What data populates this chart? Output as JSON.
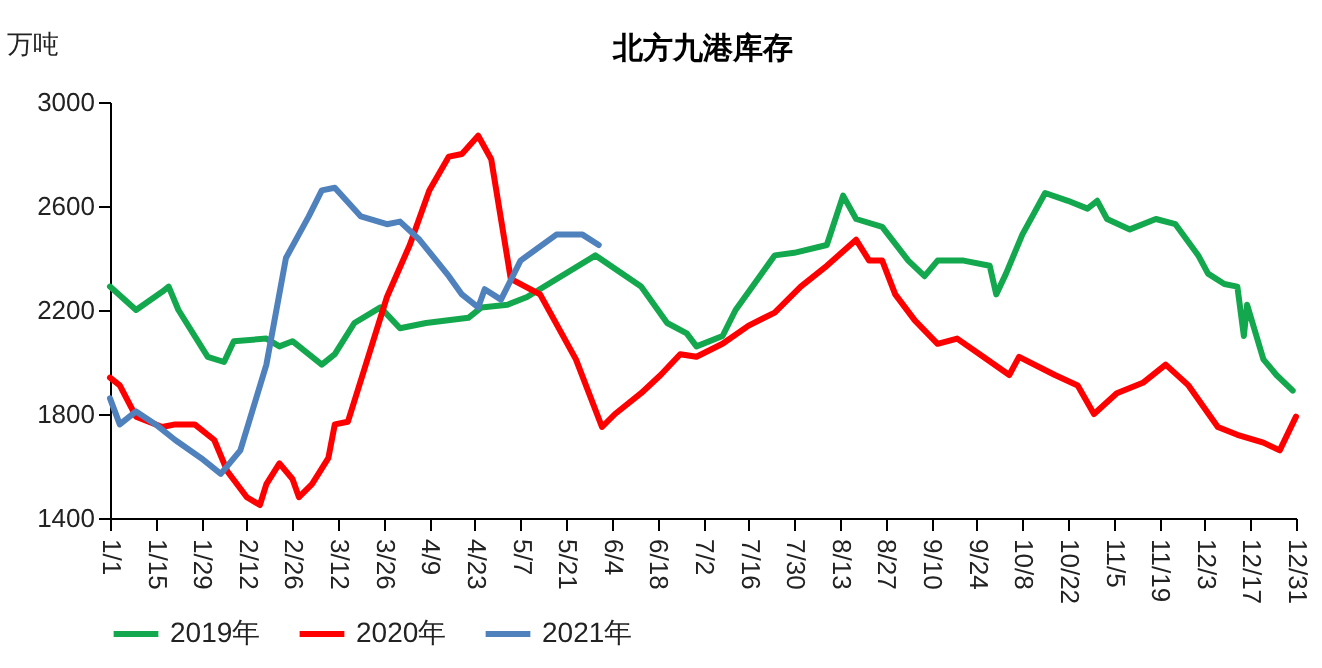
{
  "chart_data": {
    "type": "line",
    "title": "北方九港库存",
    "ylabel": "万吨",
    "ylim": [
      1400,
      3000
    ],
    "yticks": [
      1400,
      1800,
      2200,
      2600,
      3000
    ],
    "xlim": [
      "--01-01",
      "--12-31"
    ],
    "xticks": [
      {
        "value": "--01-01",
        "label": "1/1"
      },
      {
        "value": "--01-15",
        "label": "1/15"
      },
      {
        "value": "--01-29",
        "label": "1/29"
      },
      {
        "value": "--02-12",
        "label": "2/12"
      },
      {
        "value": "--02-26",
        "label": "2/26"
      },
      {
        "value": "--03-12",
        "label": "3/12"
      },
      {
        "value": "--03-26",
        "label": "3/26"
      },
      {
        "value": "--04-09",
        "label": "4/9"
      },
      {
        "value": "--04-23",
        "label": "4/23"
      },
      {
        "value": "--05-07",
        "label": "5/7"
      },
      {
        "value": "--05-21",
        "label": "5/21"
      },
      {
        "value": "--06-04",
        "label": "6/4"
      },
      {
        "value": "--06-18",
        "label": "6/18"
      },
      {
        "value": "--07-02",
        "label": "7/2"
      },
      {
        "value": "--07-16",
        "label": "7/16"
      },
      {
        "value": "--07-30",
        "label": "7/30"
      },
      {
        "value": "--08-13",
        "label": "8/13"
      },
      {
        "value": "--08-27",
        "label": "8/27"
      },
      {
        "value": "--09-10",
        "label": "9/10"
      },
      {
        "value": "--09-24",
        "label": "9/24"
      },
      {
        "value": "--10-08",
        "label": "10/8"
      },
      {
        "value": "--10-22",
        "label": "10/22"
      },
      {
        "value": "--11-05",
        "label": "11/5"
      },
      {
        "value": "--11-19",
        "label": "11/19"
      },
      {
        "value": "--12-03",
        "label": "12/3"
      },
      {
        "value": "--12-17",
        "label": "12/17"
      },
      {
        "value": "--12-31",
        "label": "12/31"
      }
    ],
    "legend": "bottom",
    "grid": false,
    "marker": "none",
    "line_style": "solid",
    "series": [
      {
        "name": "2019年",
        "color": "#13a84e",
        "x": [
          "--01-01",
          "--01-09",
          "--01-17",
          "--01-19",
          "--01-22",
          "--01-31",
          "--02-05",
          "--02-08",
          "--02-18",
          "--02-22",
          "--02-26",
          "--03-07",
          "--03-11",
          "--03-17",
          "--03-25",
          "--03-31",
          "--04-08",
          "--04-21",
          "--04-25",
          "--05-03",
          "--05-09",
          "--05-30",
          "--06-13",
          "--06-21",
          "--06-27",
          "--06-30",
          "--07-08",
          "--07-12",
          "--07-24",
          "--07-30",
          "--08-09",
          "--08-14",
          "--08-18",
          "--08-26",
          "--09-03",
          "--09-08",
          "--09-12",
          "--09-20",
          "--09-28",
          "--09-30",
          "--10-03",
          "--10-08",
          "--10-15",
          "--10-22",
          "--10-28",
          "--10-31",
          "--11-03",
          "--11-10",
          "--11-18",
          "--11-24",
          "--12-01",
          "--12-04",
          "--12-09",
          "--12-13",
          "--12-15",
          "--12-16",
          "--12-21",
          "--12-25",
          "--12-30"
        ],
        "values": [
          2290,
          2200,
          2270,
          2290,
          2200,
          2020,
          2000,
          2080,
          2090,
          2060,
          2080,
          1990,
          2030,
          2150,
          2210,
          2130,
          2150,
          2170,
          2210,
          2220,
          2250,
          2410,
          2290,
          2150,
          2110,
          2060,
          2100,
          2200,
          2410,
          2420,
          2450,
          2640,
          2550,
          2520,
          2390,
          2330,
          2390,
          2390,
          2370,
          2260,
          2340,
          2490,
          2650,
          2620,
          2590,
          2620,
          2550,
          2510,
          2550,
          2530,
          2410,
          2340,
          2300,
          2290,
          2100,
          2220,
          2010,
          1950,
          1890
        ]
      },
      {
        "name": "2020年",
        "color": "#ff0000",
        "x": [
          "--01-01",
          "--01-04",
          "--01-09",
          "--01-17",
          "--01-21",
          "--01-27",
          "--02-02",
          "--02-06",
          "--02-12",
          "--02-16",
          "--02-18",
          "--02-22",
          "--02-26",
          "--02-28",
          "--03-04",
          "--03-09",
          "--03-11",
          "--03-15",
          "--03-20",
          "--03-27",
          "--04-03",
          "--04-09",
          "--04-15",
          "--04-19",
          "--04-24",
          "--04-28",
          "--05-04",
          "--05-13",
          "--05-24",
          "--06-01",
          "--06-05",
          "--06-13",
          "--06-19",
          "--06-25",
          "--06-30",
          "--07-08",
          "--07-16",
          "--07-24",
          "--08-01",
          "--08-09",
          "--08-18",
          "--08-22",
          "--08-26",
          "--08-30",
          "--09-05",
          "--09-12",
          "--09-18",
          "--09-26",
          "--10-04",
          "--10-07",
          "--10-18",
          "--10-25",
          "--10-30",
          "--11-06",
          "--11-14",
          "--11-21",
          "--11-28",
          "--12-07",
          "--12-13",
          "--12-21",
          "--12-26",
          "--12-31"
        ],
        "values": [
          1940,
          1910,
          1790,
          1750,
          1760,
          1760,
          1700,
          1580,
          1480,
          1450,
          1530,
          1610,
          1550,
          1480,
          1530,
          1630,
          1760,
          1770,
          1970,
          2250,
          2450,
          2660,
          2790,
          2800,
          2870,
          2780,
          2320,
          2260,
          2010,
          1750,
          1800,
          1880,
          1950,
          2030,
          2020,
          2070,
          2140,
          2190,
          2290,
          2370,
          2470,
          2390,
          2390,
          2260,
          2160,
          2070,
          2090,
          2020,
          1950,
          2020,
          1950,
          1910,
          1800,
          1880,
          1920,
          1990,
          1910,
          1750,
          1720,
          1690,
          1660,
          1790
        ]
      },
      {
        "name": "2021年",
        "color": "#4f81bd",
        "x": [
          "--01-01",
          "--01-04",
          "--01-09",
          "--01-15",
          "--01-21",
          "--01-29",
          "--02-04",
          "--02-10",
          "--02-18",
          "--02-24",
          "--03-03",
          "--03-07",
          "--03-11",
          "--03-19",
          "--03-27",
          "--03-31",
          "--04-06",
          "--04-15",
          "--04-19",
          "--04-24",
          "--04-26",
          "--05-01",
          "--05-07",
          "--05-18",
          "--05-26",
          "--05-31"
        ],
        "values": [
          1860,
          1760,
          1810,
          1760,
          1700,
          1630,
          1570,
          1660,
          1990,
          2400,
          2560,
          2660,
          2670,
          2560,
          2530,
          2540,
          2470,
          2330,
          2260,
          2210,
          2280,
          2240,
          2390,
          2490,
          2490,
          2450
        ]
      }
    ]
  }
}
